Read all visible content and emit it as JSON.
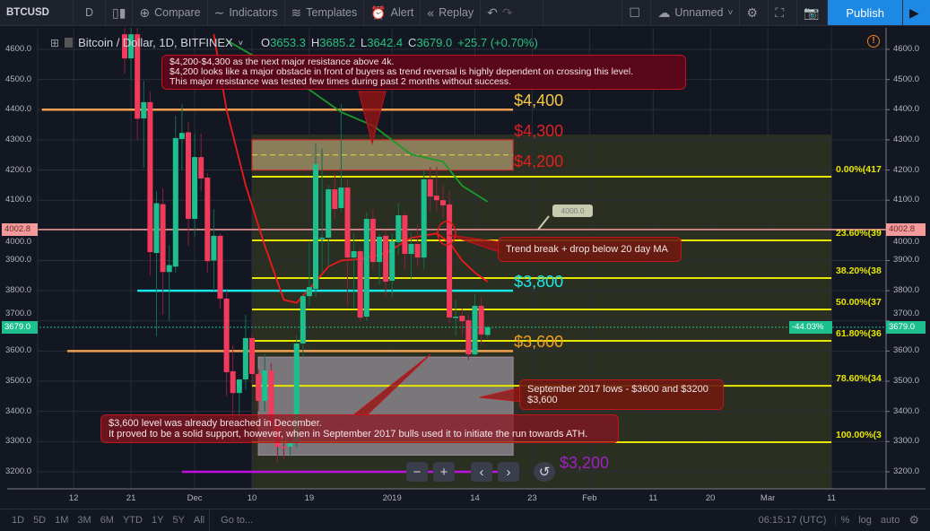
{
  "toolbar": {
    "symbol": "BTCUSD",
    "interval": "D",
    "compare": "Compare",
    "indicators": "Indicators",
    "templates": "Templates",
    "alert": "Alert",
    "replay": "Replay",
    "layout_name": "Unnamed",
    "publish": "Publish"
  },
  "legend": {
    "title": "Bitcoin / Dollar, 1D, BITFINEX",
    "o_label": "O",
    "o": "3653.3",
    "h_label": "H",
    "h": "3685.2",
    "l_label": "L",
    "l": "3642.4",
    "c_label": "C",
    "c": "3679.0",
    "change": "+25.7 (+0.70%)"
  },
  "colors": {
    "up": "#1dbf8e",
    "down": "#f23a5c",
    "background": "#131722",
    "publish": "#1e88e5",
    "fib": "#e6e600",
    "level_4400": "#f0a050",
    "level_3800": "#19e6e6",
    "level_3600": "#f0a050",
    "level_3200": "#c010e0",
    "zone": "#9a8a60",
    "last_price": "#1dbf8e",
    "marker": "#f59a9a"
  },
  "price_axis": {
    "ticks": [
      "4600.0",
      "4500.0",
      "4400.0",
      "4300.0",
      "4200.0",
      "4100.0",
      "4000.0",
      "3900.0",
      "3800.0",
      "3700.0",
      "3600.0",
      "3500.0",
      "3400.0",
      "3300.0",
      "3200.0"
    ],
    "marker_label": "4002.8",
    "last_label": "3679.0",
    "pct_label": "-44.03%"
  },
  "time_axis": {
    "ticks": [
      [
        "2018-11-12",
        "12"
      ],
      [
        "2018-11-21",
        "21"
      ],
      [
        "2018-12-01",
        "Dec"
      ],
      [
        "2018-12-10",
        "10"
      ],
      [
        "2018-12-19",
        "19"
      ],
      [
        "2019-01-01",
        "2019"
      ],
      [
        "2019-01-14",
        "14"
      ],
      [
        "2019-01-23",
        "23"
      ],
      [
        "2019-02-01",
        "Feb"
      ],
      [
        "2019-02-11",
        "11"
      ],
      [
        "2019-02-20",
        "20"
      ],
      [
        "2019-03-01",
        "Mar"
      ],
      [
        "2019-03-11",
        "11"
      ]
    ]
  },
  "chart_data": {
    "type": "candlestick",
    "symbol": "BTCUSD",
    "ylim": [
      3200,
      4600
    ],
    "last_price": 3679.0,
    "marker_price": 4002.8,
    "candles": [
      [
        "2018-11-20",
        4650,
        4700,
        4520,
        4570
      ],
      [
        "2018-11-21",
        4570,
        4680,
        4500,
        4650
      ],
      [
        "2018-11-22",
        4650,
        4680,
        4300,
        4370
      ],
      [
        "2018-11-23",
        4371,
        4496,
        4208,
        4425
      ],
      [
        "2018-11-24",
        4425,
        4460,
        3850,
        3928
      ],
      [
        "2018-11-25",
        3925,
        4130,
        3650,
        4090
      ],
      [
        "2018-11-26",
        4087,
        4140,
        3720,
        3862
      ],
      [
        "2018-11-27",
        3862,
        3950,
        3700,
        3885
      ],
      [
        "2018-11-28",
        3880,
        4380,
        3860,
        4306
      ],
      [
        "2018-11-29",
        4303,
        4420,
        4200,
        4323
      ],
      [
        "2018-11-30",
        4325,
        4360,
        3950,
        4038
      ],
      [
        "2018-12-01",
        4038,
        4320,
        3980,
        4243
      ],
      [
        "2018-12-02",
        4243,
        4320,
        4130,
        4172
      ],
      [
        "2018-12-03",
        4175,
        4190,
        3860,
        3898
      ],
      [
        "2018-12-04",
        3900,
        4070,
        3800,
        3982
      ],
      [
        "2018-12-05",
        3982,
        3990,
        3740,
        3774
      ],
      [
        "2018-12-06",
        3774,
        3800,
        3450,
        3530
      ],
      [
        "2018-12-07",
        3533,
        3620,
        3300,
        3461
      ],
      [
        "2018-12-08",
        3461,
        3500,
        3380,
        3506
      ],
      [
        "2018-12-09",
        3506,
        3720,
        3470,
        3643
      ],
      [
        "2018-12-10",
        3643,
        3660,
        3490,
        3524
      ],
      [
        "2018-12-11",
        3524,
        3540,
        3400,
        3435
      ],
      [
        "2018-12-12",
        3435,
        3590,
        3400,
        3536
      ],
      [
        "2018-12-13",
        3536,
        3560,
        3330,
        3357
      ],
      [
        "2018-12-14",
        3357,
        3380,
        3230,
        3283
      ],
      [
        "2018-12-15",
        3283,
        3300,
        3240,
        3280
      ],
      [
        "2018-12-16",
        3283,
        3320,
        3250,
        3301
      ],
      [
        "2018-12-17",
        3298,
        3650,
        3280,
        3625
      ],
      [
        "2018-12-18",
        3625,
        3790,
        3580,
        3782
      ],
      [
        "2018-12-19",
        3782,
        3960,
        3750,
        3812
      ],
      [
        "2018-12-20",
        3806,
        4290,
        3780,
        4219
      ],
      [
        "2018-12-21",
        3976,
        4270,
        3860,
        3976
      ],
      [
        "2018-12-22",
        3976,
        4150,
        3880,
        4136
      ],
      [
        "2018-12-23",
        4136,
        4190,
        4040,
        4071
      ],
      [
        "2018-12-24",
        4074,
        4420,
        4060,
        4142
      ],
      [
        "2018-12-25",
        4142,
        4170,
        3750,
        3910
      ],
      [
        "2018-12-26",
        3910,
        3990,
        3740,
        3931
      ],
      [
        "2018-12-27",
        3931,
        3940,
        3700,
        3711
      ],
      [
        "2018-12-28",
        3714,
        4060,
        3700,
        4038
      ],
      [
        "2018-12-29",
        4038,
        4070,
        3870,
        3895
      ],
      [
        "2018-12-30",
        3895,
        3990,
        3820,
        3979
      ],
      [
        "2018-12-31",
        3982,
        4000,
        3780,
        3830
      ],
      [
        "2019-01-01",
        3833,
        3990,
        3780,
        3964
      ],
      [
        "2019-01-02",
        3961,
        4090,
        3920,
        4050
      ],
      [
        "2019-01-03",
        4050,
        4060,
        3870,
        3922
      ],
      [
        "2019-01-04",
        3922,
        3990,
        3840,
        3955
      ],
      [
        "2019-01-05",
        3955,
        4020,
        3880,
        3910
      ],
      [
        "2019-01-06",
        3910,
        4200,
        3870,
        4169
      ],
      [
        "2019-01-07",
        4169,
        4210,
        4060,
        4112
      ],
      [
        "2019-01-08",
        4115,
        4210,
        4060,
        4100
      ],
      [
        "2019-01-09",
        4100,
        4150,
        4040,
        4083
      ],
      [
        "2019-01-10",
        4086,
        4130,
        3690,
        3711
      ],
      [
        "2019-01-11",
        3714,
        3770,
        3650,
        3714
      ],
      [
        "2019-01-12",
        3717,
        3740,
        3650,
        3699
      ],
      [
        "2019-01-13",
        3702,
        3720,
        3570,
        3589
      ],
      [
        "2019-01-14",
        3589,
        3790,
        3580,
        3750
      ],
      [
        "2019-01-15",
        3750,
        3780,
        3620,
        3655
      ],
      [
        "2019-01-16",
        3653.3,
        3685.2,
        3642.4,
        3679.0
      ]
    ],
    "ma_red": [
      [
        "2018-12-04",
        4650
      ],
      [
        "2018-12-06",
        4400
      ],
      [
        "2018-12-09",
        4150
      ],
      [
        "2018-12-12",
        3950
      ],
      [
        "2018-12-15",
        3770
      ],
      [
        "2018-12-17",
        3760
      ],
      [
        "2018-12-19",
        3806
      ],
      [
        "2018-12-22",
        3880
      ],
      [
        "2018-12-24",
        3900
      ],
      [
        "2018-12-27",
        3905
      ],
      [
        "2018-12-31",
        3925
      ],
      [
        "2019-01-04",
        3975
      ],
      [
        "2019-01-08",
        3990
      ],
      [
        "2019-01-10",
        3960
      ],
      [
        "2019-01-12",
        3900
      ],
      [
        "2019-01-14",
        3860
      ],
      [
        "2019-01-16",
        3830
      ]
    ],
    "ma_green": [
      [
        "2018-12-06",
        4630
      ],
      [
        "2018-12-17",
        4496
      ],
      [
        "2018-12-24",
        4392
      ],
      [
        "2018-12-29",
        4347
      ],
      [
        "2019-01-04",
        4252
      ],
      [
        "2019-01-09",
        4228
      ],
      [
        "2019-01-12",
        4148
      ],
      [
        "2019-01-16",
        4095
      ]
    ],
    "levels": [
      {
        "price": 4400,
        "from": "2018-11-07",
        "to": "2019-01-20",
        "color": "#f0a050",
        "label": "$4,400",
        "label_color": "#f5c842"
      },
      {
        "price": 3800,
        "from": "2018-11-22",
        "to": "2019-01-20",
        "color": "#19e6e6",
        "label": "$3,800",
        "label_color": "#19e6e6"
      },
      {
        "price": 3600,
        "from": "2018-11-11",
        "to": "2019-01-20",
        "color": "#f0a050",
        "label": "$3,600",
        "label_color": "#f0a020"
      },
      {
        "price": 3200,
        "from": "2018-11-29",
        "to": "2019-01-20",
        "color": "#c010e0",
        "label": "$3,200",
        "label_color": "#a020c0"
      }
    ],
    "zone": {
      "from": "2018-12-10",
      "to": "2019-01-20",
      "low": 4200,
      "high": 4300,
      "mid": 4250,
      "label_high": "$4,300",
      "label_low": "$4,200"
    },
    "gray_box": {
      "from": "2018-12-11",
      "to": "2019-01-20",
      "low": 3255,
      "high": 3580
    },
    "fib": {
      "from": "2018-12-10",
      "to": "2019-03-11",
      "levels": [
        {
          "price": 4178,
          "label": "0.00%(417"
        },
        {
          "price": 3967,
          "label": "23.60%(39"
        },
        {
          "price": 3842,
          "label": "38.20%(38"
        },
        {
          "price": 3738,
          "label": "50.00%(37"
        },
        {
          "price": 3634,
          "label": "61.80%(36"
        },
        {
          "price": 3485,
          "label": "78.60%(34"
        },
        {
          "price": 3298,
          "label": "100.00%(3"
        }
      ]
    },
    "price_callout": "4000.0"
  },
  "notes": {
    "resistance": [
      "$4,200-$4,300 as the next major resistance above 4k.",
      "$4,200 looks like a major obstacle in front of buyers as trend reversal is highly dependent on crossing this level.",
      "This major resistance was tested few times during past 2 months without success."
    ],
    "trend": "Trend break + drop below 20 day MA",
    "sept": [
      "September 2017 lows - $3600 and $3200",
      "$3,600"
    ],
    "support": [
      "$3,600 level was already breached in December.",
      "It proved to be a solid support, however, when in September 2017 bulls used it to initiate the run towards ATH."
    ]
  },
  "bottom_bar": {
    "ranges": [
      "1D",
      "5D",
      "1M",
      "3M",
      "6M",
      "YTD",
      "1Y",
      "5Y",
      "All"
    ],
    "goto": "Go to...",
    "clock": "06:15:17 (UTC)",
    "pct": "%",
    "log": "log",
    "auto": "auto"
  }
}
